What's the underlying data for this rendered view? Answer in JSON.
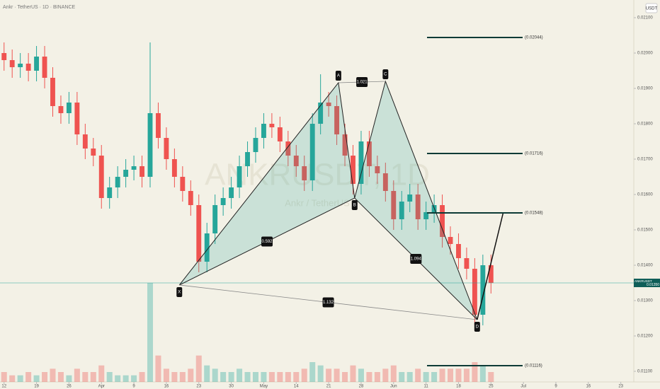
{
  "chart_data": {
    "type": "candlestick",
    "symbol_info": "Ankr · TetherUS · 1D · BINANCE",
    "watermark": "ANKRUSDT, 1D",
    "watermark_sub": "Ankr / TetherUS",
    "currency": "USDT",
    "symbol": "ANKRUSDT",
    "last_price": 0.0135,
    "last_label": "0.01350",
    "up_color": "#26a69a",
    "down_color": "#ef5350",
    "open": [
      0.02,
      0.0198,
      0.0196,
      0.0197,
      0.0195,
      0.0199,
      0.0193,
      0.0185,
      0.0183,
      0.0186,
      0.0177,
      0.0173,
      0.0171,
      0.0159,
      0.0162,
      0.0165,
      0.0167,
      0.0168,
      0.0165,
      0.0183,
      0.0176,
      0.017,
      0.0165,
      0.0161,
      0.0157,
      0.0141,
      0.0149,
      0.0157,
      0.0159,
      0.0162,
      0.0168,
      0.0172,
      0.0176,
      0.018,
      0.0179,
      0.0175,
      0.0171,
      0.0168,
      0.0164,
      0.018,
      0.0186,
      0.0185,
      0.0177,
      0.0171,
      0.0163,
      0.0175,
      0.0168,
      0.0166,
      0.0161,
      0.0153,
      0.0158,
      0.016,
      0.0153,
      0.0155,
      0.0157,
      0.0148,
      0.0146,
      0.0142,
      0.0139,
      0.0126,
      0.014
    ],
    "high": [
      0.0203,
      0.0201,
      0.02,
      0.02,
      0.0202,
      0.0202,
      0.0196,
      0.0188,
      0.0189,
      0.0189,
      0.018,
      0.0176,
      0.0174,
      0.0165,
      0.0168,
      0.017,
      0.0171,
      0.0171,
      0.0203,
      0.0186,
      0.0179,
      0.0173,
      0.0168,
      0.0164,
      0.016,
      0.0152,
      0.016,
      0.0162,
      0.0165,
      0.0171,
      0.0175,
      0.0179,
      0.0183,
      0.0183,
      0.0182,
      0.0178,
      0.0174,
      0.0171,
      0.0183,
      0.0194,
      0.0189,
      0.0188,
      0.018,
      0.0174,
      0.0178,
      0.0178,
      0.0171,
      0.0169,
      0.0164,
      0.0161,
      0.0163,
      0.0163,
      0.0158,
      0.016,
      0.016,
      0.0151,
      0.0149,
      0.0145,
      0.0142,
      0.0143,
      0.0143
    ],
    "low": [
      0.0195,
      0.0193,
      0.0193,
      0.0192,
      0.0192,
      0.019,
      0.0182,
      0.018,
      0.018,
      0.0174,
      0.017,
      0.0168,
      0.0156,
      0.0156,
      0.0159,
      0.0162,
      0.0164,
      0.0162,
      0.0162,
      0.0173,
      0.0167,
      0.0162,
      0.0158,
      0.0154,
      0.0138,
      0.0138,
      0.0146,
      0.0154,
      0.0156,
      0.0159,
      0.0165,
      0.0169,
      0.0173,
      0.0176,
      0.0172,
      0.0168,
      0.0165,
      0.0161,
      0.0161,
      0.0177,
      0.0182,
      0.0174,
      0.0168,
      0.016,
      0.016,
      0.0165,
      0.0163,
      0.0158,
      0.015,
      0.015,
      0.0155,
      0.015,
      0.015,
      0.0152,
      0.0145,
      0.0143,
      0.0139,
      0.0136,
      0.0123,
      0.0123,
      0.0132
    ],
    "close": [
      0.0198,
      0.0196,
      0.0197,
      0.0195,
      0.0199,
      0.0193,
      0.0185,
      0.0183,
      0.0186,
      0.0177,
      0.0173,
      0.0171,
      0.0159,
      0.0162,
      0.0165,
      0.0167,
      0.0168,
      0.0165,
      0.0183,
      0.0176,
      0.017,
      0.0165,
      0.0161,
      0.0157,
      0.0141,
      0.0149,
      0.0157,
      0.0159,
      0.0162,
      0.0168,
      0.0172,
      0.0176,
      0.018,
      0.0179,
      0.0175,
      0.0171,
      0.0168,
      0.0164,
      0.018,
      0.0186,
      0.0185,
      0.0177,
      0.0171,
      0.0163,
      0.0175,
      0.0168,
      0.0166,
      0.0161,
      0.0153,
      0.0158,
      0.016,
      0.0153,
      0.0155,
      0.0157,
      0.0148,
      0.0146,
      0.0142,
      0.0139,
      0.0126,
      0.014,
      0.0135
    ],
    "volume": [
      3,
      2,
      2,
      3,
      2,
      3,
      4,
      3,
      2,
      4,
      3,
      3,
      5,
      3,
      2,
      2,
      2,
      3,
      30,
      8,
      4,
      3,
      3,
      4,
      8,
      5,
      4,
      3,
      3,
      4,
      3,
      3,
      3,
      3,
      3,
      3,
      3,
      4,
      6,
      5,
      4,
      4,
      3,
      5,
      4,
      3,
      3,
      4,
      5,
      3,
      3,
      4,
      3,
      3,
      4,
      4,
      4,
      4,
      6,
      5,
      3
    ],
    "xlim": [
      -0.5,
      77.6
    ],
    "ylim": [
      0.0107,
      0.0215
    ],
    "yticks": [
      {
        "value": 0.011,
        "label": "0.01100"
      },
      {
        "value": 0.012,
        "label": "0.01200"
      },
      {
        "value": 0.013,
        "label": "0.01300"
      },
      {
        "value": 0.014,
        "label": "0.01400"
      },
      {
        "value": 0.015,
        "label": "0.01500"
      },
      {
        "value": 0.016,
        "label": "0.01600"
      },
      {
        "value": 0.017,
        "label": "0.01700"
      },
      {
        "value": 0.018,
        "label": "0.01800"
      },
      {
        "value": 0.019,
        "label": "0.01900"
      },
      {
        "value": 0.02,
        "label": "0.02000"
      },
      {
        "value": 0.021,
        "label": "0.02100"
      }
    ],
    "xticks": [
      {
        "value": 0,
        "label": "12"
      },
      {
        "value": 4,
        "label": "19"
      },
      {
        "value": 8,
        "label": "26"
      },
      {
        "value": 12,
        "label": "Apr"
      },
      {
        "value": 16,
        "label": "9"
      },
      {
        "value": 20,
        "label": "16"
      },
      {
        "value": 24,
        "label": "23"
      },
      {
        "value": 28,
        "label": "30"
      },
      {
        "value": 32,
        "label": "May"
      },
      {
        "value": 36,
        "label": "14"
      },
      {
        "value": 40,
        "label": "21"
      },
      {
        "value": 44,
        "label": "28"
      },
      {
        "value": 48,
        "label": "Jun"
      },
      {
        "value": 52,
        "label": "11"
      },
      {
        "value": 56,
        "label": "18"
      },
      {
        "value": 60,
        "label": "25"
      },
      {
        "value": 64,
        "label": "Jul"
      },
      {
        "value": 68,
        "label": "9"
      },
      {
        "value": 72,
        "label": "16"
      },
      {
        "value": 76,
        "label": "23"
      }
    ],
    "pattern": {
      "points": [
        {
          "label": "X",
          "x": 21.6,
          "price": 0.01344
        },
        {
          "label": "A",
          "x": 41.2,
          "price": 0.01916
        },
        {
          "label": "B",
          "x": 43.2,
          "price": 0.0159
        },
        {
          "label": "C",
          "x": 47,
          "price": 0.0192
        },
        {
          "label": "D",
          "x": 58.3,
          "price": 0.01246
        }
      ],
      "ratios": [
        "0.592",
        "1.021",
        "1.094",
        "1.132"
      ]
    },
    "levels": {
      "values": [
        0.02044,
        0.01716,
        0.01548,
        0.01116
      ],
      "value_labels": [
        "(0.02044)",
        "(0.01716)",
        "(0.01548)",
        "(0.01116)"
      ]
    }
  }
}
